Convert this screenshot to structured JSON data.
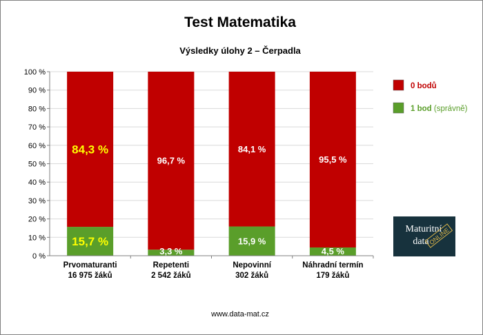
{
  "title": "Test Matematika",
  "subtitle": "Výsledky úlohy 2 – Čerpadla",
  "footer": "www.data-mat.cz",
  "logo": {
    "line1": "Maturitní",
    "line2": "data",
    "stamp": "ONLINE",
    "bg": "#17323d"
  },
  "colors": {
    "zero": "#c00000",
    "one": "#5a9e2a",
    "highlight": "#ffff00",
    "label": "#ffffff",
    "legend_zero": "#c00000",
    "legend_one": "#5a9e2a"
  },
  "legend": {
    "zero": "0 bodů",
    "one": "1 bod",
    "one_note": "(správně)"
  },
  "chart_data": {
    "type": "bar",
    "stacked": true,
    "categories": [
      "Prvomaturanti",
      "Repetenti",
      "Nepovinní",
      "Náhradní termín"
    ],
    "category_subs": [
      "16 975 žáků",
      "2 542 žáků",
      "302 žáků",
      "179 žáků"
    ],
    "series": [
      {
        "name": "1 bod (správně)",
        "values": [
          15.7,
          3.3,
          15.9,
          4.5
        ],
        "labels": [
          "15,7 %",
          "3,3 %",
          "15,9 %",
          "4,5 %"
        ]
      },
      {
        "name": "0 bodů",
        "values": [
          84.3,
          96.7,
          84.1,
          95.5
        ],
        "labels": [
          "84,3 %",
          "96,7 %",
          "84,1 %",
          "95,5 %"
        ]
      }
    ],
    "highlight_index": 0,
    "ylim": [
      0,
      100
    ],
    "yticks": [
      0,
      10,
      20,
      30,
      40,
      50,
      60,
      70,
      80,
      90,
      100
    ],
    "ytick_labels": [
      "0 %",
      "10 %",
      "20 %",
      "30 %",
      "40 %",
      "50 %",
      "60 %",
      "70 %",
      "80 %",
      "90 %",
      "100 %"
    ],
    "grid": true,
    "legend_position": "right"
  }
}
